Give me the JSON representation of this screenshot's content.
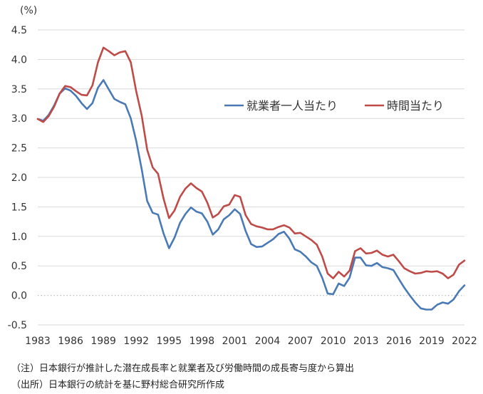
{
  "chart_data": {
    "type": "line",
    "title": "",
    "xlabel": "",
    "ylabel": "",
    "y_unit": "(%)",
    "ylim": [
      -0.5,
      4.5
    ],
    "yticks": [
      -0.5,
      0.0,
      0.5,
      1.0,
      1.5,
      2.0,
      2.5,
      3.0,
      3.5,
      4.0,
      4.5
    ],
    "xlim": [
      1983,
      2022
    ],
    "xticks": [
      1983,
      1986,
      1989,
      1992,
      1995,
      1998,
      2001,
      2004,
      2007,
      2010,
      2013,
      2016,
      2019,
      2022
    ],
    "grid": "horizontal",
    "legend_position": "right",
    "x": [
      1983.0,
      1983.5,
      1984.0,
      1984.5,
      1985.0,
      1985.5,
      1986.0,
      1986.5,
      1987.0,
      1987.5,
      1988.0,
      1988.5,
      1989.0,
      1989.5,
      1990.0,
      1990.5,
      1991.0,
      1991.5,
      1992.0,
      1992.5,
      1993.0,
      1993.5,
      1994.0,
      1994.5,
      1995.0,
      1995.5,
      1996.0,
      1996.5,
      1997.0,
      1997.5,
      1998.0,
      1998.5,
      1999.0,
      1999.5,
      2000.0,
      2000.5,
      2001.0,
      2001.5,
      2002.0,
      2002.5,
      2003.0,
      2003.5,
      2004.0,
      2004.5,
      2005.0,
      2005.5,
      2006.0,
      2006.5,
      2007.0,
      2007.5,
      2008.0,
      2008.5,
      2009.0,
      2009.5,
      2010.0,
      2010.5,
      2011.0,
      2011.5,
      2012.0,
      2012.5,
      2013.0,
      2013.5,
      2014.0,
      2014.5,
      2015.0,
      2015.5,
      2016.0,
      2016.5,
      2017.0,
      2017.5,
      2018.0,
      2018.5,
      2019.0,
      2019.5,
      2020.0,
      2020.5,
      2021.0,
      2021.5,
      2022.0
    ],
    "series": [
      {
        "name": "就業者一人当たり",
        "color": "#4a7ab5",
        "values": [
          2.99,
          2.96,
          3.06,
          3.22,
          3.42,
          3.51,
          3.47,
          3.38,
          3.26,
          3.16,
          3.26,
          3.52,
          3.65,
          3.49,
          3.33,
          3.28,
          3.24,
          3.0,
          2.62,
          2.14,
          1.6,
          1.4,
          1.37,
          1.05,
          0.8,
          0.98,
          1.23,
          1.38,
          1.49,
          1.42,
          1.39,
          1.25,
          1.03,
          1.12,
          1.29,
          1.36,
          1.46,
          1.38,
          1.09,
          0.87,
          0.82,
          0.83,
          0.89,
          0.95,
          1.04,
          1.08,
          0.96,
          0.78,
          0.74,
          0.66,
          0.56,
          0.5,
          0.3,
          0.03,
          0.02,
          0.2,
          0.16,
          0.3,
          0.64,
          0.64,
          0.51,
          0.5,
          0.55,
          0.48,
          0.46,
          0.43,
          0.28,
          0.13,
          0.0,
          -0.12,
          -0.22,
          -0.24,
          -0.24,
          -0.16,
          -0.12,
          -0.14,
          -0.07,
          0.07,
          0.17
        ]
      },
      {
        "name": "時間当たり",
        "color": "#be4b48",
        "values": [
          2.99,
          2.94,
          3.04,
          3.2,
          3.42,
          3.55,
          3.53,
          3.46,
          3.4,
          3.39,
          3.56,
          3.95,
          4.2,
          4.14,
          4.07,
          4.12,
          4.14,
          3.95,
          3.46,
          3.05,
          2.47,
          2.17,
          2.06,
          1.64,
          1.31,
          1.44,
          1.67,
          1.81,
          1.9,
          1.82,
          1.76,
          1.57,
          1.32,
          1.38,
          1.51,
          1.54,
          1.7,
          1.67,
          1.36,
          1.21,
          1.17,
          1.15,
          1.12,
          1.12,
          1.16,
          1.19,
          1.15,
          1.05,
          1.06,
          1.0,
          0.94,
          0.86,
          0.66,
          0.37,
          0.29,
          0.4,
          0.32,
          0.42,
          0.75,
          0.8,
          0.71,
          0.72,
          0.76,
          0.69,
          0.66,
          0.69,
          0.58,
          0.46,
          0.41,
          0.37,
          0.38,
          0.41,
          0.4,
          0.41,
          0.37,
          0.29,
          0.35,
          0.52,
          0.59
        ]
      }
    ]
  },
  "notes": {
    "note1": "（注）日本銀行が推計した潜在成長率と就業者及び労働時間の成長寄与度から算出",
    "note2": "（出所）日本銀行の統計を基に野村総合研究所作成"
  }
}
